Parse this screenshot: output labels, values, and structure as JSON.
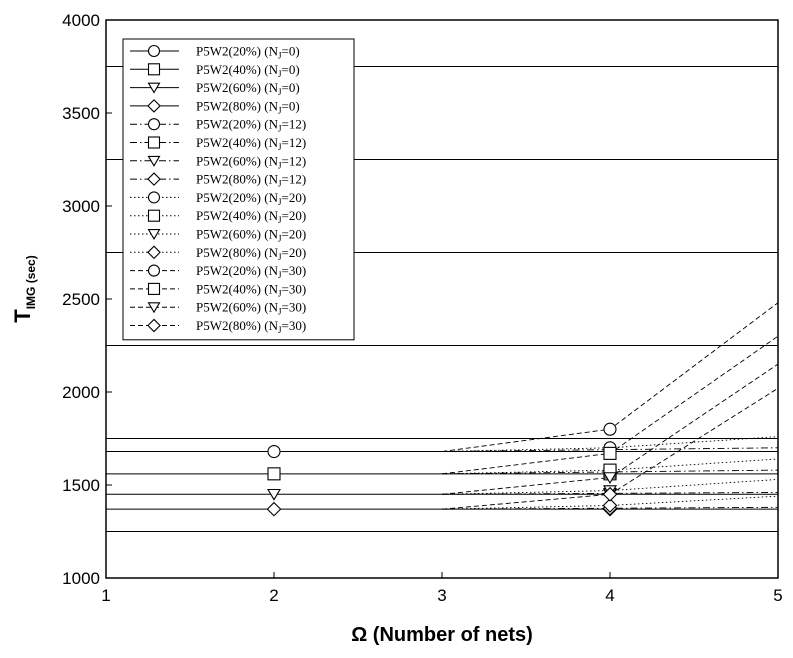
{
  "chart_data": {
    "type": "line",
    "xlabel": "Ω (Number of nets)",
    "ylabel_main": "T",
    "ylabel_sub": "IMG (sec)",
    "xlim": [
      1,
      5
    ],
    "ylim": [
      1000,
      4000
    ],
    "xticks": [
      1,
      2,
      3,
      4,
      5
    ],
    "yticks": [
      1000,
      1500,
      2000,
      2500,
      3000,
      3500,
      4000
    ],
    "reference_lines_y": [
      1250,
      1750,
      2250,
      2750,
      3250,
      3750
    ],
    "grid": false,
    "legend_position": "top-left",
    "series": [
      {
        "name": "P5W2(20%) (N",
        "name_sub": "J",
        "name_tail": "=0)",
        "marker": "circle",
        "dash": "solid",
        "x": [
          2,
          4
        ],
        "y": [
          1680,
          1680
        ]
      },
      {
        "name": "P5W2(40%) (N",
        "name_sub": "J",
        "name_tail": "=0)",
        "marker": "square",
        "dash": "solid",
        "x": [
          2,
          4
        ],
        "y": [
          1560,
          1560
        ]
      },
      {
        "name": "P5W2(60%) (N",
        "name_sub": "J",
        "name_tail": "=0)",
        "marker": "triangle-down",
        "dash": "solid",
        "x": [
          2,
          4
        ],
        "y": [
          1450,
          1450
        ]
      },
      {
        "name": "P5W2(80%) (N",
        "name_sub": "J",
        "name_tail": "=0)",
        "marker": "diamond",
        "dash": "solid",
        "x": [
          2,
          4
        ],
        "y": [
          1370,
          1370
        ]
      },
      {
        "name": "P5W2(20%) (N",
        "name_sub": "J",
        "name_tail": "=12)",
        "marker": "circle",
        "dash": "dashdot",
        "x": [
          3,
          4,
          5
        ],
        "y": [
          1680,
          1690,
          1700
        ]
      },
      {
        "name": "P5W2(40%) (N",
        "name_sub": "J",
        "name_tail": "=12)",
        "marker": "square",
        "dash": "dashdot",
        "x": [
          3,
          4,
          5
        ],
        "y": [
          1560,
          1570,
          1580
        ]
      },
      {
        "name": "P5W2(60%) (N",
        "name_sub": "J",
        "name_tail": "=12)",
        "marker": "triangle-down",
        "dash": "dashdot",
        "x": [
          3,
          4,
          5
        ],
        "y": [
          1450,
          1455,
          1460
        ]
      },
      {
        "name": "P5W2(80%) (N",
        "name_sub": "J",
        "name_tail": "=12)",
        "marker": "diamond",
        "dash": "dashdot",
        "x": [
          3,
          4,
          5
        ],
        "y": [
          1370,
          1375,
          1380
        ]
      },
      {
        "name": "P5W2(20%) (N",
        "name_sub": "J",
        "name_tail": "=20)",
        "marker": "circle",
        "dash": "dotted",
        "x": [
          3,
          4,
          5
        ],
        "y": [
          1680,
          1700,
          1760
        ]
      },
      {
        "name": "P5W2(40%) (N",
        "name_sub": "J",
        "name_tail": "=20)",
        "marker": "square",
        "dash": "dotted",
        "x": [
          3,
          4,
          5
        ],
        "y": [
          1560,
          1580,
          1640
        ]
      },
      {
        "name": "P5W2(60%) (N",
        "name_sub": "J",
        "name_tail": "=20)",
        "marker": "triangle-down",
        "dash": "dotted",
        "x": [
          3,
          4,
          5
        ],
        "y": [
          1450,
          1470,
          1530
        ]
      },
      {
        "name": "P5W2(80%) (N",
        "name_sub": "J",
        "name_tail": "=20)",
        "marker": "diamond",
        "dash": "dotted",
        "x": [
          3,
          4,
          5
        ],
        "y": [
          1370,
          1390,
          1440
        ]
      },
      {
        "name": "P5W2(20%) (N",
        "name_sub": "J",
        "name_tail": "=30)",
        "marker": "circle",
        "dash": "dashed",
        "x": [
          3,
          4,
          5
        ],
        "y": [
          1680,
          1800,
          2480
        ]
      },
      {
        "name": "P5W2(40%) (N",
        "name_sub": "J",
        "name_tail": "=30)",
        "marker": "square",
        "dash": "dashed",
        "x": [
          3,
          4,
          5
        ],
        "y": [
          1560,
          1670,
          2300
        ]
      },
      {
        "name": "P5W2(60%) (N",
        "name_sub": "J",
        "name_tail": "=30)",
        "marker": "triangle-down",
        "dash": "dashed",
        "x": [
          3,
          4,
          5
        ],
        "y": [
          1450,
          1540,
          2150
        ]
      },
      {
        "name": "P5W2(80%) (N",
        "name_sub": "J",
        "name_tail": "=30)",
        "marker": "diamond",
        "dash": "dashed",
        "x": [
          3,
          4,
          5
        ],
        "y": [
          1370,
          1450,
          2020
        ]
      }
    ]
  }
}
